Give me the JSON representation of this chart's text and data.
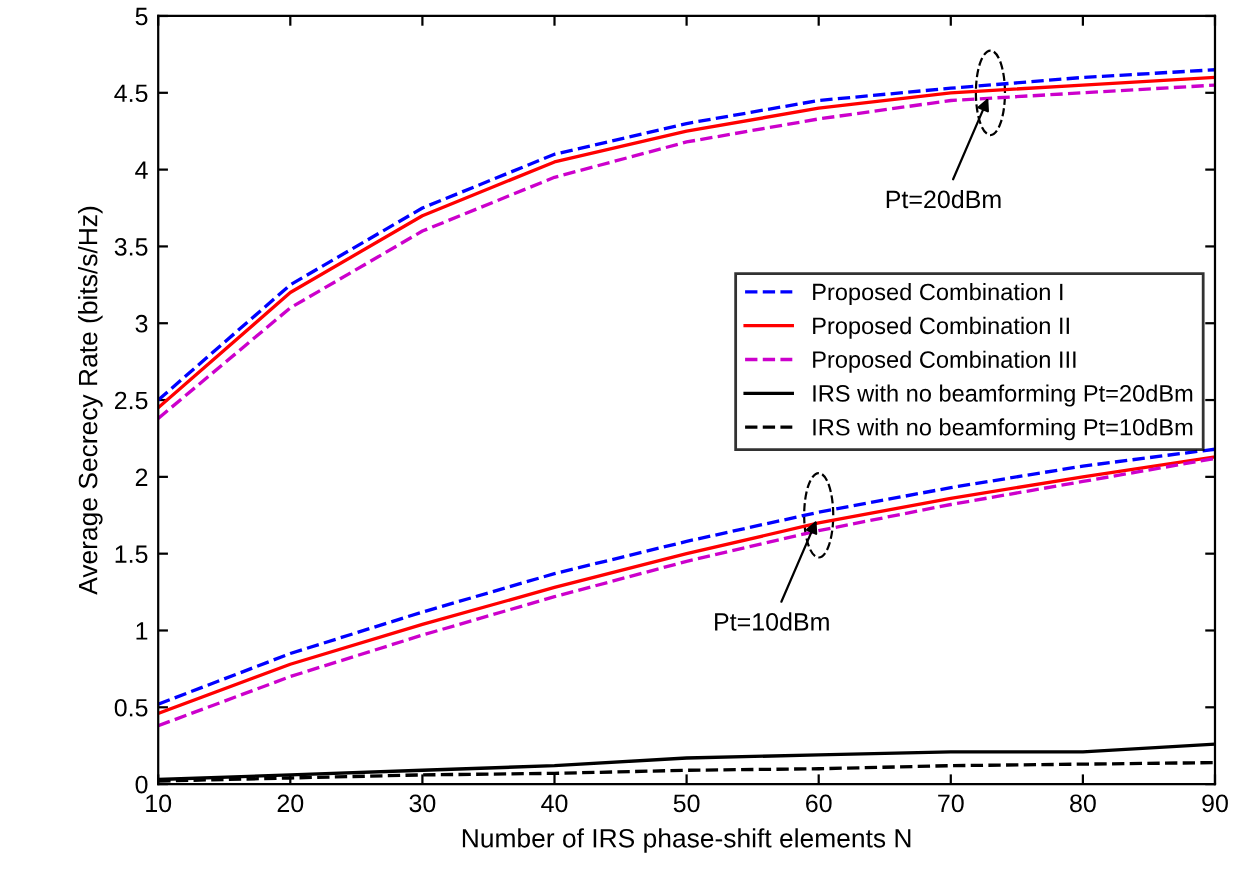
{
  "chart_data": {
    "type": "line",
    "xlabel": "Number of IRS phase-shift elements N",
    "ylabel": "Average Secrecy Rate (bits/s/Hz)",
    "x": [
      10,
      20,
      30,
      40,
      50,
      60,
      70,
      80,
      90
    ],
    "series": [
      {
        "name": "Proposed Combination I",
        "color": "#0000ff",
        "line_style": "dashed",
        "values": [
          2.5,
          3.25,
          3.75,
          4.1,
          4.3,
          4.45,
          4.53,
          4.6,
          4.65
        ]
      },
      {
        "name": "Proposed Combination II",
        "color": "#ff0000",
        "line_style": "solid",
        "values": [
          2.45,
          3.2,
          3.7,
          4.05,
          4.25,
          4.4,
          4.5,
          4.55,
          4.6
        ]
      },
      {
        "name": "Proposed Combination III",
        "color": "#cc00cc",
        "line_style": "dashed",
        "values": [
          2.38,
          3.1,
          3.6,
          3.95,
          4.18,
          4.33,
          4.45,
          4.5,
          4.55
        ]
      },
      {
        "name": "IRS with no beamforming Pt=20dBm",
        "color": "#000000",
        "line_style": "solid",
        "values": [
          0.03,
          0.06,
          0.09,
          0.12,
          0.17,
          0.19,
          0.21,
          0.21,
          0.26
        ]
      },
      {
        "name": "IRS with no beamforming Pt=10dBm",
        "color": "#000000",
        "line_style": "dashed",
        "values": [
          0.02,
          0.04,
          0.06,
          0.07,
          0.09,
          0.1,
          0.12,
          0.13,
          0.14
        ]
      },
      {
        "color": "#0000ff",
        "line_style": "dashed",
        "values": [
          0.52,
          0.85,
          1.12,
          1.37,
          1.58,
          1.77,
          1.93,
          2.07,
          2.18
        ]
      },
      {
        "color": "#ff0000",
        "line_style": "solid",
        "values": [
          0.46,
          0.78,
          1.04,
          1.28,
          1.5,
          1.7,
          1.86,
          2.0,
          2.13
        ]
      },
      {
        "color": "#cc00cc",
        "line_style": "dashed",
        "values": [
          0.38,
          0.7,
          0.97,
          1.22,
          1.45,
          1.65,
          1.82,
          1.97,
          2.12
        ]
      }
    ],
    "annotations": [
      {
        "text": "Pt=20dBm",
        "x": 73,
        "y": 4.5
      },
      {
        "text": "Pt=10dBm",
        "x": 60,
        "y": 1.75
      }
    ],
    "xlim": [
      10,
      90
    ],
    "xticks": [
      10,
      20,
      30,
      40,
      50,
      60,
      70,
      80,
      90
    ],
    "ylim": [
      0,
      5
    ],
    "yticks": [
      0,
      0.5,
      1,
      1.5,
      2,
      2.5,
      3,
      3.5,
      4,
      4.5,
      5
    ],
    "grid": false,
    "legend": "right",
    "marker": "none"
  }
}
